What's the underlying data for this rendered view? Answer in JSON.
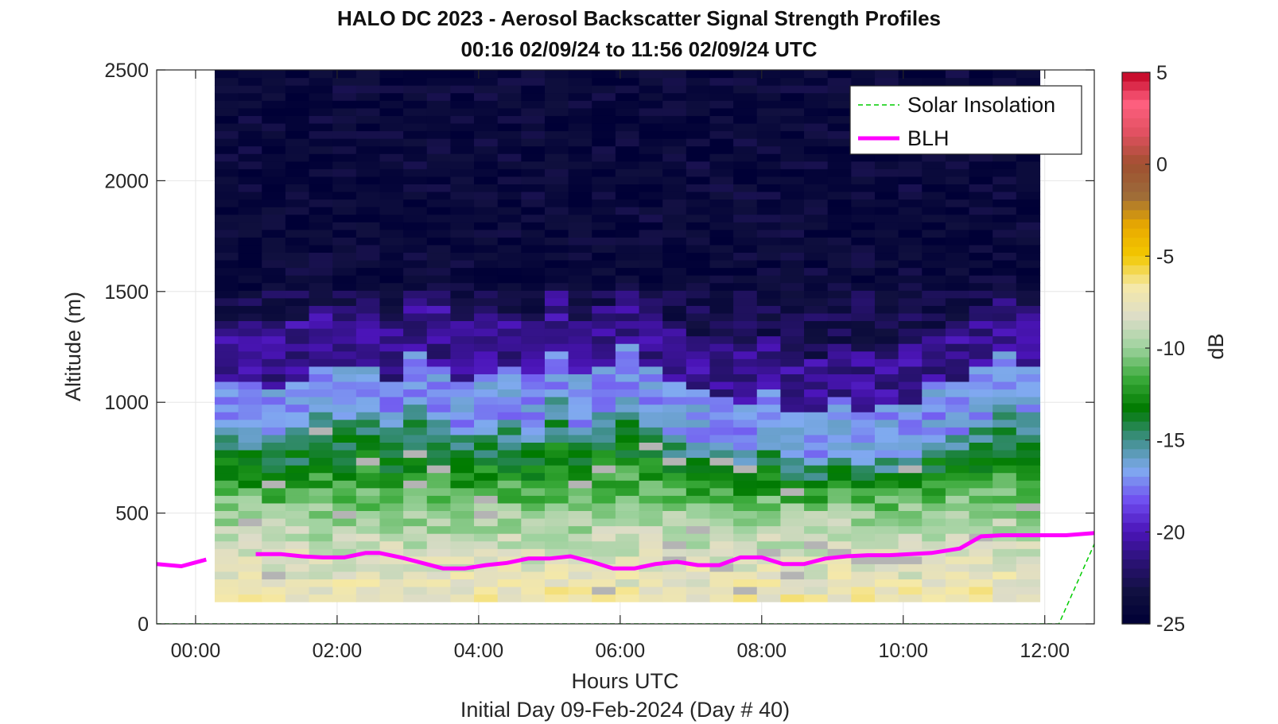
{
  "title_line1": "HALO DC 2023 - Aerosol Backscatter Signal Strength Profiles",
  "title_line2": "00:16 02/09/24 to 11:56 02/09/24  UTC",
  "xlabel": "Hours UTC",
  "ylabel": "Altitude (m)",
  "footer": "Initial Day 09-Feb-2024 (Day # 40)",
  "colorbar_label": "dB",
  "legend": {
    "solar": "Solar Insolation",
    "blh": "BLH"
  },
  "colors": {
    "solar_line": "#00cc00",
    "blh_line": "#ff00ff",
    "colormap": [
      "#000036",
      "#10103e",
      "#2a1274",
      "#4b14b8",
      "#6f4cf0",
      "#80aaf0",
      "#3f8f8a",
      "#007a00",
      "#3aaa3a",
      "#9ed29e",
      "#dcdcc8",
      "#f5e9a8",
      "#f2c800",
      "#e8a800",
      "#9c6a3a",
      "#a05030",
      "#e05060",
      "#ff6080",
      "#c00020"
    ]
  },
  "chart_data": {
    "type": "heatmap",
    "xlim": [
      -0.55,
      12.7
    ],
    "ylim": [
      0,
      2500
    ],
    "clim": [
      -25,
      5
    ],
    "xticks": [
      0,
      2,
      4,
      6,
      8,
      10,
      12
    ],
    "xticklabels": [
      "00:00",
      "02:00",
      "04:00",
      "06:00",
      "08:00",
      "10:00",
      "12:00"
    ],
    "yticks": [
      0,
      500,
      1000,
      1500,
      2000,
      2500
    ],
    "cticks": [
      5,
      0,
      -5,
      -10,
      -15,
      -20,
      -25
    ],
    "heatmap_x_range": [
      0.27,
      11.93
    ],
    "heatmap_y_range": [
      100,
      2500
    ],
    "aerosol_top_m": [
      1100,
      1100,
      1070,
      1100,
      1180,
      1180,
      1180,
      1110,
      1240,
      1180,
      1110,
      1130,
      1160,
      1120,
      1240,
      1120,
      1180,
      1260,
      1180,
      1090,
      1050,
      1030,
      1000,
      1050,
      970,
      950,
      1010,
      970,
      980,
      1000,
      1080,
      1090,
      1160,
      1220,
      1180
    ],
    "series": [
      {
        "name": "BLH",
        "x": [
          -0.55,
          -0.2,
          0.15,
          0.55,
          0.85,
          1.2,
          1.5,
          1.8,
          2.1,
          2.4,
          2.6,
          2.9,
          3.2,
          3.5,
          3.8,
          4.1,
          4.4,
          4.7,
          5.0,
          5.3,
          5.6,
          5.9,
          6.2,
          6.5,
          6.8,
          7.1,
          7.4,
          7.7,
          8.0,
          8.3,
          8.6,
          8.9,
          9.2,
          9.5,
          9.8,
          10.1,
          10.4,
          10.8,
          11.1,
          11.4,
          11.7,
          12.0,
          12.3,
          12.7
        ],
        "y": [
          270,
          260,
          290,
          null,
          315,
          315,
          305,
          300,
          300,
          320,
          320,
          300,
          275,
          250,
          250,
          265,
          275,
          295,
          295,
          305,
          280,
          250,
          250,
          270,
          280,
          265,
          265,
          300,
          300,
          270,
          270,
          295,
          305,
          310,
          310,
          315,
          320,
          340,
          395,
          400,
          400,
          400,
          400,
          410
        ]
      },
      {
        "name": "Solar Insolation",
        "x": [
          -0.55,
          12.2,
          12.7
        ],
        "y": [
          0,
          0,
          360
        ]
      }
    ]
  }
}
